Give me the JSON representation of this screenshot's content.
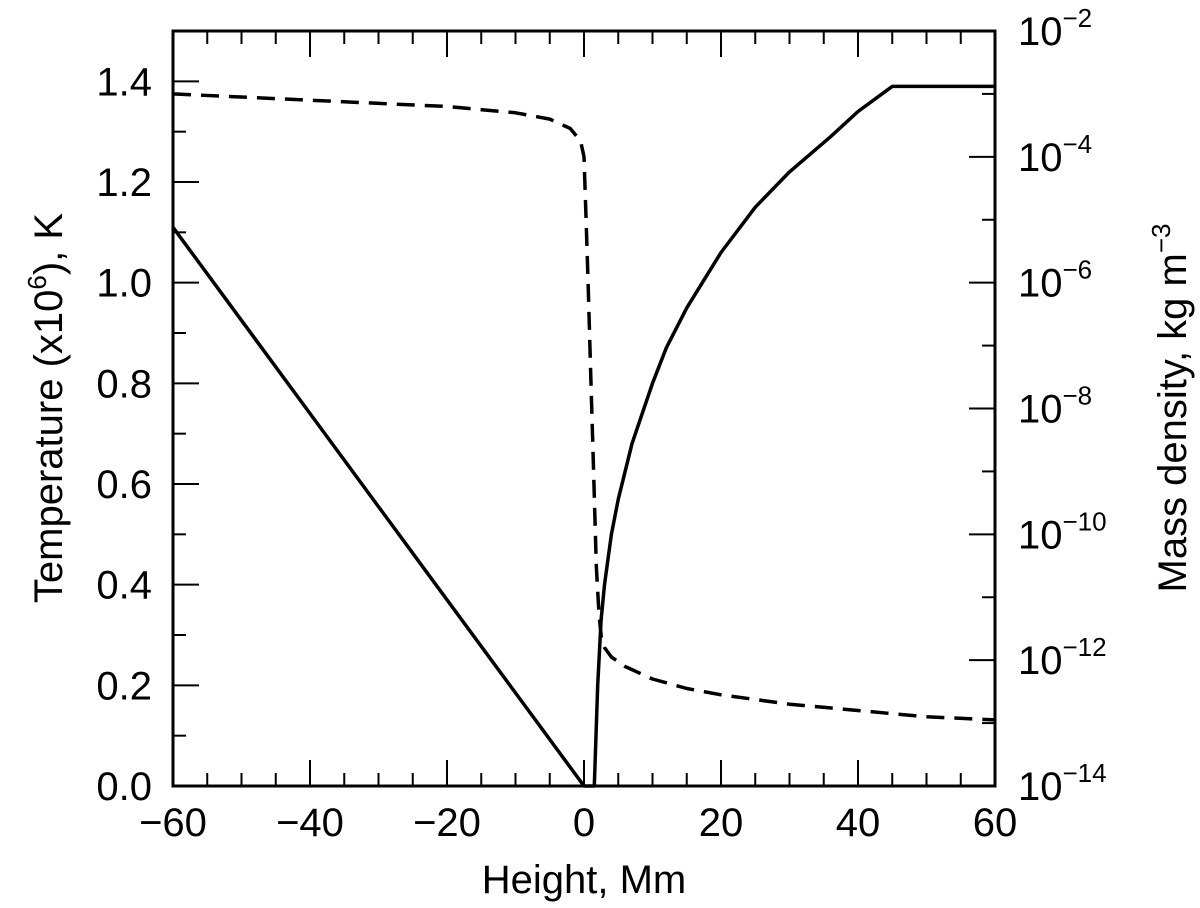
{
  "chart_data": {
    "type": "line",
    "xlabel": "Height, Mm",
    "ylabel": {
      "main": "Temperature (x10",
      "sup": "6",
      "tail": "), K"
    },
    "y2label": {
      "main": "Mass density, kg m",
      "sup": "−3"
    },
    "xlim": [
      -60,
      60
    ],
    "ylim": [
      0,
      1.5
    ],
    "y2lim_log10": [
      -14,
      -2
    ],
    "y2scale": "log",
    "x_ticks": [
      -60,
      -40,
      -20,
      0,
      20,
      40,
      60
    ],
    "x_tick_labels": [
      "−60",
      "−40",
      "−20",
      "0",
      "20",
      "40",
      "60"
    ],
    "y_ticks": [
      0.0,
      0.2,
      0.4,
      0.6,
      0.8,
      1.0,
      1.2,
      1.4
    ],
    "y_tick_labels": [
      "0.0",
      "0.2",
      "0.4",
      "0.6",
      "0.8",
      "1.0",
      "1.2",
      "1.4"
    ],
    "y2_ticks_exp": [
      -14,
      -12,
      -10,
      -8,
      -6,
      -4,
      -2
    ],
    "y2_tick_labels": [
      {
        "base": "10",
        "exp": "−14"
      },
      {
        "base": "10",
        "exp": "−12"
      },
      {
        "base": "10",
        "exp": "−10"
      },
      {
        "base": "10",
        "exp": "−8"
      },
      {
        "base": "10",
        "exp": "−6"
      },
      {
        "base": "10",
        "exp": "−4"
      },
      {
        "base": "10",
        "exp": "−2"
      }
    ],
    "grid": false,
    "legend": "none",
    "series": [
      {
        "axis": "left",
        "style": "solid",
        "x": [
          -60,
          -40,
          -20,
          -10,
          0,
          0.5,
          1.5,
          2.0,
          2.5,
          3,
          4,
          5,
          7,
          10,
          12,
          15,
          20,
          25,
          30,
          36,
          40,
          45,
          60
        ],
        "y": [
          1.11,
          0.74,
          0.37,
          0.185,
          0.0,
          0.0,
          0.0,
          0.2,
          0.33,
          0.4,
          0.5,
          0.57,
          0.68,
          0.8,
          0.87,
          0.95,
          1.06,
          1.15,
          1.22,
          1.29,
          1.34,
          1.39,
          1.39
        ]
      },
      {
        "axis": "right",
        "style": "dashed",
        "x": [
          -60,
          -40,
          -20,
          -10,
          -5,
          -2,
          -0.5,
          0,
          0.3,
          0.6,
          1.0,
          1.4,
          1.8,
          2.2,
          2.6,
          3,
          4,
          6,
          10,
          15,
          20,
          30,
          40,
          50,
          60
        ],
        "y_log10": [
          -3.0,
          -3.1,
          -3.2,
          -3.3,
          -3.4,
          -3.55,
          -3.75,
          -4.0,
          -5.0,
          -6.0,
          -7.5,
          -9.0,
          -10.5,
          -11.3,
          -11.7,
          -11.8,
          -11.95,
          -12.1,
          -12.3,
          -12.45,
          -12.55,
          -12.7,
          -12.8,
          -12.9,
          -12.95
        ]
      }
    ]
  }
}
